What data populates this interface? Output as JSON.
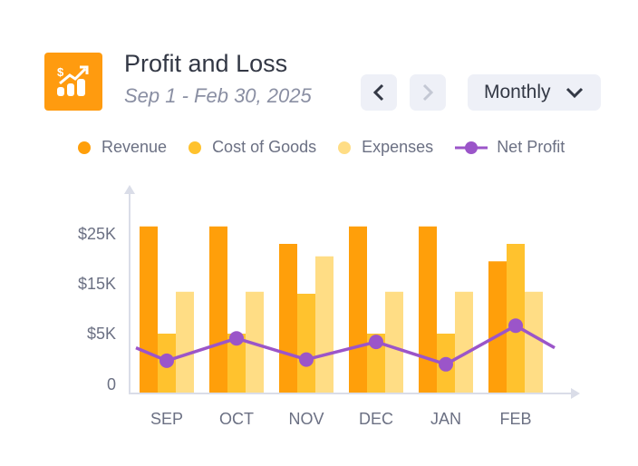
{
  "header": {
    "title": "Profit and Loss",
    "subtitle": "Sep 1 - Feb 30, 2025",
    "icon": "chart-growth-dollar-icon",
    "period_select": "Monthly"
  },
  "colors": {
    "revenue": "#FF9F0A",
    "cost": "#FFC22E",
    "expenses": "#FFDD85",
    "net": "#9B55C9",
    "axis": "#DADDE8"
  },
  "chart_data": {
    "type": "bar",
    "categories": [
      "SEP",
      "OCT",
      "NOV",
      "DEC",
      "JAN",
      "FEB"
    ],
    "y_ticks": [
      {
        "value": 0,
        "label": "0"
      },
      {
        "value": 5,
        "label": "$5K"
      },
      {
        "value": 15,
        "label": "$15K"
      },
      {
        "value": 25,
        "label": "$25K"
      }
    ],
    "units": "thousands USD",
    "legend_position": "top",
    "grid": false,
    "series": [
      {
        "name": "Revenue",
        "type": "bar",
        "values": [
          26.5,
          26.5,
          23,
          26.5,
          26.5,
          19.5
        ]
      },
      {
        "name": "Cost of Goods",
        "type": "bar",
        "values": [
          5,
          5,
          13,
          5,
          5,
          23
        ]
      },
      {
        "name": "Expenses",
        "type": "bar",
        "values": [
          13.4,
          13.4,
          20.5,
          13.4,
          13.4,
          13.4
        ]
      },
      {
        "name": "Net Profit",
        "type": "line",
        "values": [
          2.7,
          4.6,
          2.8,
          4.3,
          2.4,
          6.6
        ],
        "lead_in": 3.8,
        "lead_out": 3.8
      }
    ]
  }
}
